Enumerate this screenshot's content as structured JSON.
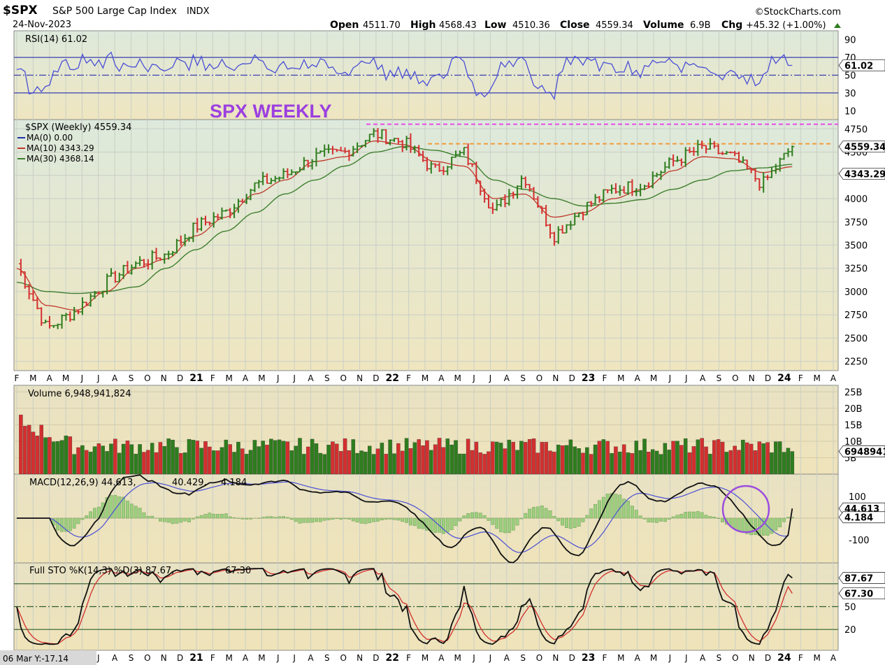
{
  "header": {
    "symbol": "$SPX",
    "name": "S&P 500 Large Cap Index",
    "exchange": "INDX",
    "date": "24-Nov-2023",
    "watermark": "©StockCharts.com",
    "open_label": "Open",
    "open": "4511.70",
    "high_label": "High",
    "high": "4568.43",
    "low_label": "Low",
    "low": "4510.36",
    "close_label": "Close",
    "close": "4559.34",
    "volume_label": "Volume",
    "volume": "6.9B",
    "chg_label": "Chg",
    "chg": "+45.32 (+1.00%)",
    "chg_icon": "up-triangle-icon"
  },
  "annotation": "SPX WEEKLY",
  "colors": {
    "panel_bg_top": "#dde9dc",
    "panel_bg_bottom": "#efe6c0",
    "up": "#2e7d1e",
    "down": "#d32f2f",
    "ma10": "#c0392b",
    "ma30": "#3f7f2f",
    "rsi": "#4a4fd6",
    "resistance_magenta": "#e94be9",
    "resistance_orange": "#f39c3a",
    "circle": "#9b4dde"
  },
  "rsi_panel": {
    "title": "RSI(14) 61.02",
    "value_tag": "61.02",
    "axis": [
      "90",
      "70",
      "50",
      "30",
      "10"
    ]
  },
  "price_panel": {
    "title": "$SPX (Weekly) 4559.34",
    "legend": [
      {
        "label": "MA(0) 0.00",
        "color": "#1f2fa8"
      },
      {
        "label": "MA(10) 4343.29",
        "color": "#c0392b"
      },
      {
        "label": "MA(30) 4368.14",
        "color": "#3f7f2f"
      }
    ],
    "price_tag": "4559.34",
    "ma_tag": "4343.29",
    "axis": [
      "4750",
      "4500",
      "4250",
      "4000",
      "3750",
      "3500",
      "3250",
      "3000",
      "2750",
      "2500",
      "2250"
    ]
  },
  "volume_panel": {
    "title": "Volume 6,948,941,824",
    "value_tag": "6948941",
    "axis": [
      "25B",
      "20B",
      "15B",
      "10B",
      "5B"
    ]
  },
  "macd_panel": {
    "title": "MACD(12,26,9) 44.613,",
    "signal_value": "40.429,",
    "hist_value": "4.184",
    "macd_tag": "44.613",
    "hist_tag": "4.184",
    "axis": [
      "100",
      "-100"
    ]
  },
  "sto_panel": {
    "title": "Full STO %K(14,3) %D(3) 87.67,",
    "d_value": "67.30",
    "k_tag": "87.67",
    "d_tag": "67.30",
    "axis": [
      "50",
      "20"
    ]
  },
  "x_axis_top": [
    "F",
    "M",
    "A",
    "M",
    "J",
    "J",
    "A",
    "S",
    "O",
    "N",
    "D",
    "21",
    "F",
    "M",
    "A",
    "M",
    "J",
    "J",
    "A",
    "S",
    "O",
    "N",
    "D",
    "22",
    "F",
    "M",
    "A",
    "M",
    "J",
    "J",
    "A",
    "S",
    "O",
    "N",
    "D",
    "23",
    "F",
    "M",
    "A",
    "M",
    "J",
    "J",
    "A",
    "S",
    "O",
    "N",
    "D",
    "24",
    "F",
    "M",
    "A"
  ],
  "x_axis_bottom_prefix": "06 Mar Y:-17.14",
  "x_axis_bottom": [
    "J",
    "A",
    "S",
    "O",
    "N",
    "D",
    "21",
    "F",
    "M",
    "A",
    "M",
    "J",
    "J",
    "A",
    "S",
    "O",
    "N",
    "D",
    "22",
    "F",
    "M",
    "A",
    "M",
    "J",
    "J",
    "A",
    "S",
    "O",
    "N",
    "D",
    "23",
    "F",
    "M",
    "A",
    "M",
    "J",
    "J",
    "A",
    "S",
    "O",
    "N",
    "D",
    "24",
    "F",
    "M",
    "A"
  ],
  "chart_data": {
    "type": "line",
    "title": "$SPX (Weekly)",
    "frequency": "weekly",
    "x": [
      "2020-02",
      "2020-03",
      "2020-04",
      "2020-06",
      "2020-08",
      "2020-10",
      "2020-12",
      "2021-02",
      "2021-04",
      "2021-06",
      "2021-08",
      "2021-10",
      "2021-12",
      "2022-01",
      "2022-03",
      "2022-04",
      "2022-06",
      "2022-08",
      "2022-10",
      "2022-12",
      "2023-02",
      "2023-04",
      "2023-06",
      "2023-07",
      "2023-08",
      "2023-10",
      "2023-11"
    ],
    "ylim": [
      2150,
      4850
    ],
    "series": [
      {
        "name": "$SPX (Weekly)",
        "values": [
          3300,
          2600,
          2800,
          3100,
          3300,
          3400,
          3700,
          3850,
          4150,
          4250,
          4450,
          4500,
          4700,
          4600,
          4300,
          4500,
          3850,
          4250,
          3600,
          3900,
          4100,
          4150,
          4400,
          4550,
          4450,
          4150,
          4559.34
        ]
      },
      {
        "name": "MA(10)",
        "values": [
          3250,
          2850,
          2800,
          3000,
          3250,
          3350,
          3600,
          3800,
          4050,
          4200,
          4400,
          4450,
          4620,
          4580,
          4400,
          4350,
          4000,
          4050,
          3800,
          3850,
          4000,
          4100,
          4300,
          4450,
          4430,
          4280,
          4343.29
        ]
      },
      {
        "name": "MA(30)",
        "values": [
          3100,
          3000,
          2980,
          3000,
          3050,
          3250,
          3450,
          3650,
          3850,
          4050,
          4200,
          4350,
          4500,
          4560,
          4520,
          4450,
          4200,
          4100,
          4000,
          3920,
          3950,
          3990,
          4100,
          4200,
          4300,
          4330,
          4368.14
        ]
      }
    ],
    "resistance_levels": [
      4800,
      4590
    ],
    "rsi": {
      "name": "RSI(14)",
      "last": 61.02,
      "ylim": [
        0,
        100
      ],
      "levels": [
        70,
        50,
        30
      ]
    },
    "volume": {
      "name": "Volume",
      "last": 6948941824,
      "unit": "B",
      "ylim": [
        0,
        27
      ]
    },
    "macd": {
      "name": "MACD(12,26,9)",
      "macd": 44.613,
      "signal": 40.429,
      "histogram": 4.184
    },
    "stochastic": {
      "name": "Full STO %K(14,3) %D(3)",
      "k": 87.67,
      "d": 67.3,
      "levels": [
        80,
        50,
        20
      ]
    }
  }
}
